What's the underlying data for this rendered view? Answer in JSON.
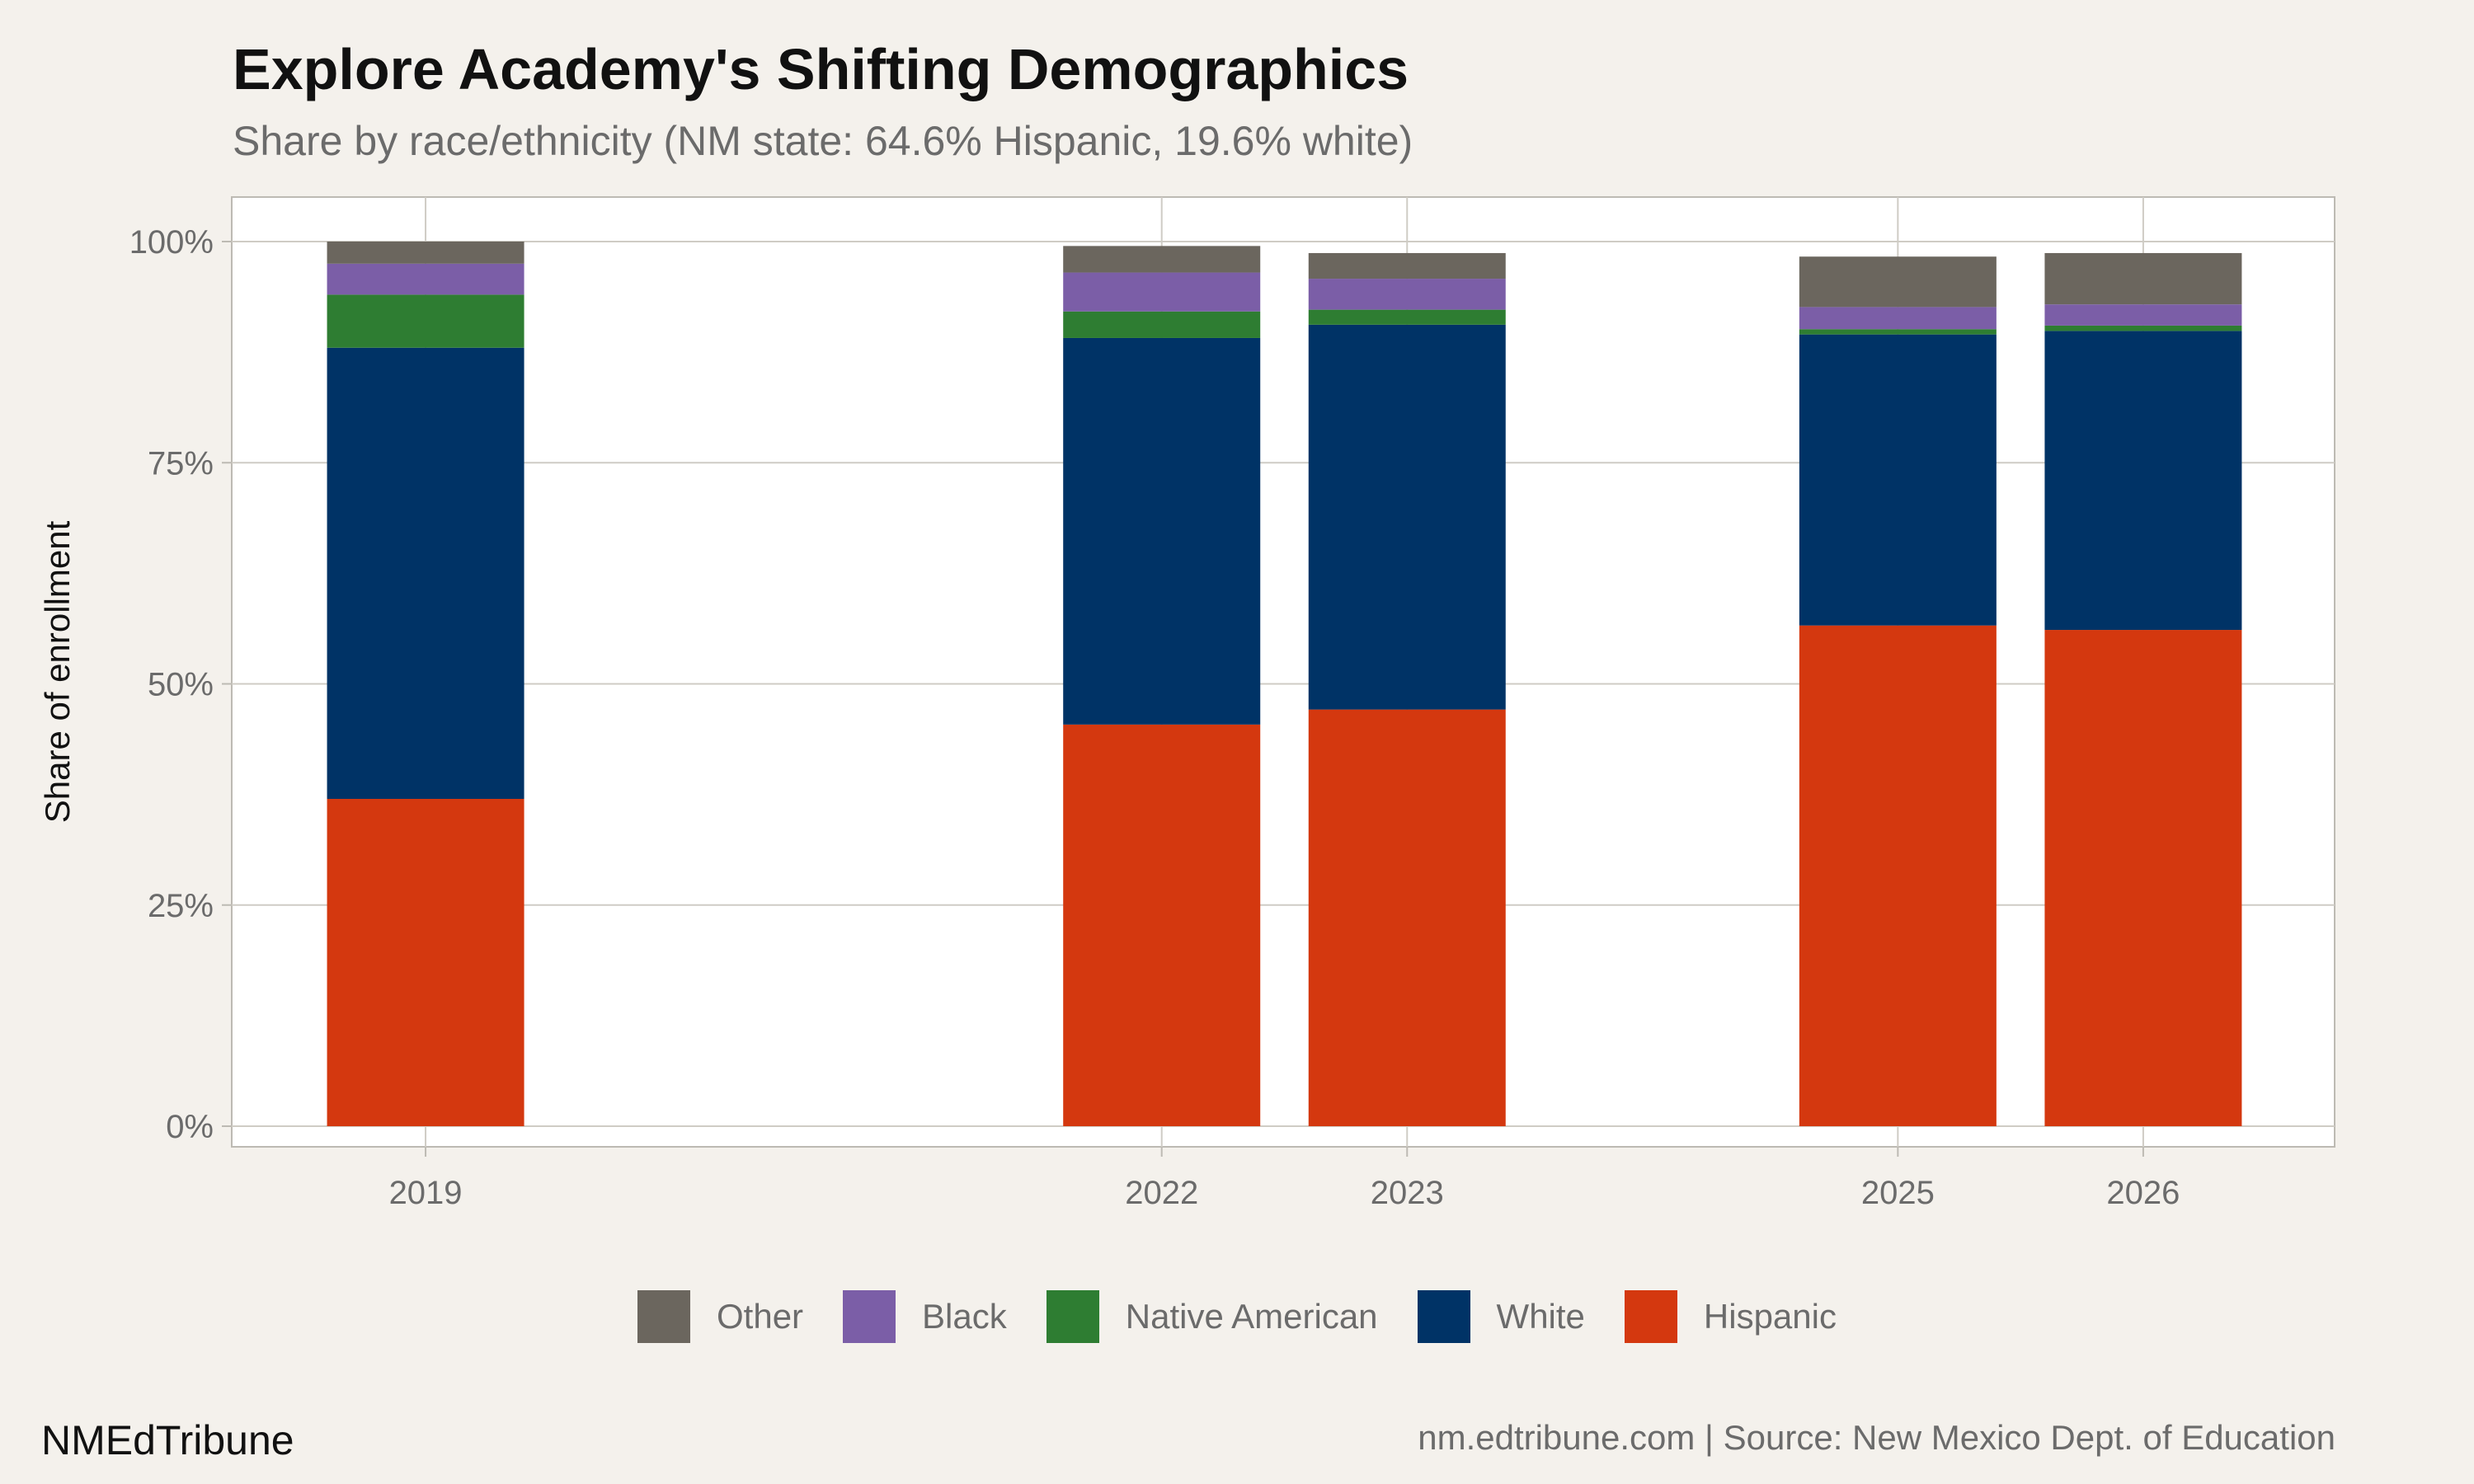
{
  "title": "Explore Academy's Shifting Demographics",
  "subtitle": "Share by race/ethnicity (NM state: 64.6% Hispanic, 19.6% white)",
  "footer": {
    "brand": "NMEdTribune",
    "source": "nm.edtribune.com | Source: New Mexico Dept. of Education"
  },
  "chart_data": {
    "type": "bar",
    "stacked": true,
    "title": "Explore Academy's Shifting Demographics",
    "subtitle": "Share by race/ethnicity (NM state: 64.6% Hispanic, 19.6% white)",
    "xlabel": "",
    "ylabel": "Share of enrollment",
    "x": [
      2019,
      2022,
      2023,
      2025,
      2026
    ],
    "x_tick_labels": [
      "2019",
      "2022",
      "2023",
      "2025",
      "2026"
    ],
    "ylim": [
      0,
      100
    ],
    "y_ticks": [
      0,
      25,
      50,
      75,
      100
    ],
    "y_tick_labels": [
      "0%",
      "25%",
      "50%",
      "75%",
      "100%"
    ],
    "grid": true,
    "legend_position": "bottom",
    "series": [
      {
        "name": "Hispanic",
        "color": "#d4380f",
        "values": [
          37.0,
          45.4,
          47.1,
          56.6,
          56.1
        ]
      },
      {
        "name": "White",
        "color": "#003366",
        "values": [
          51.0,
          43.7,
          43.5,
          32.9,
          33.8
        ]
      },
      {
        "name": "Native American",
        "color": "#2e7d32",
        "values": [
          6.0,
          3.0,
          1.7,
          0.6,
          0.6
        ]
      },
      {
        "name": "Black",
        "color": "#7b5ea7",
        "values": [
          3.5,
          4.4,
          3.5,
          2.5,
          2.4
        ]
      },
      {
        "name": "Other",
        "color": "#6b665e",
        "values": [
          2.5,
          3.0,
          2.9,
          5.7,
          5.8
        ]
      }
    ],
    "legend_order": [
      "Other",
      "Black",
      "Native American",
      "White",
      "Hispanic"
    ]
  }
}
